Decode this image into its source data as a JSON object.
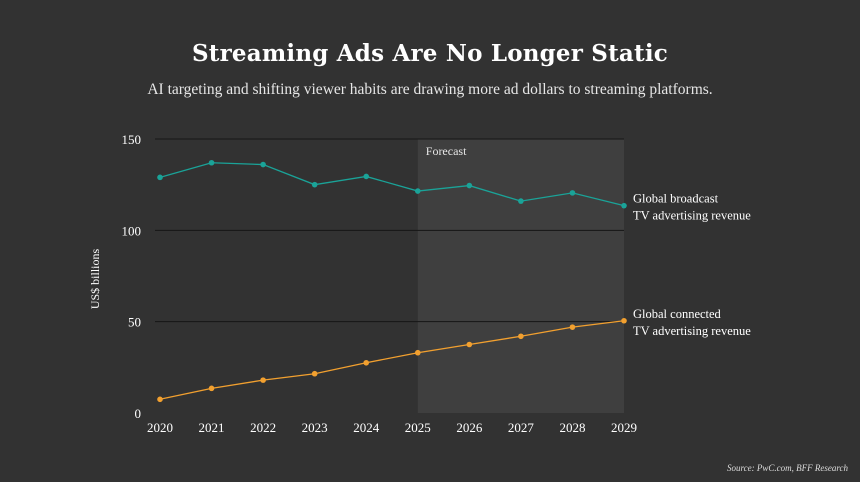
{
  "title": "Streaming Ads Are No Longer Static",
  "subtitle": "AI targeting and shifting viewer habits are drawing more ad dollars to streaming platforms.",
  "source": "Source: PwC.com, BFF Research",
  "forecast_label": "Forecast",
  "colors": {
    "background": "#323232",
    "forecast_band": "#3f3f3f",
    "broadcast": "#1aa398",
    "connected": "#f2a02f",
    "text": "#ffffff"
  },
  "chart_data": {
    "type": "line",
    "title": "Streaming Ads Are No Longer Static",
    "xlabel": "",
    "ylabel": "US$ billions",
    "ylim": [
      0,
      150
    ],
    "yticks": [
      0,
      50,
      100,
      150
    ],
    "x": [
      2020,
      2021,
      2022,
      2023,
      2024,
      2025,
      2026,
      2027,
      2028,
      2029
    ],
    "forecast_start": 2025,
    "forecast_end": 2029,
    "series": [
      {
        "name": "Global broadcast TV advertising revenue",
        "label_lines": [
          "Global broadcast",
          "TV advertising revenue"
        ],
        "color": "#1aa398",
        "values": [
          129,
          137,
          136,
          125,
          129.5,
          121.5,
          124.5,
          116,
          120.5,
          113.5
        ]
      },
      {
        "name": "Global connected TV advertising revenue",
        "label_lines": [
          "Global connected",
          "TV advertising revenue"
        ],
        "color": "#f2a02f",
        "values": [
          7.5,
          13.5,
          18,
          21.5,
          27.5,
          33,
          37.5,
          42,
          47,
          50.5
        ]
      }
    ]
  }
}
